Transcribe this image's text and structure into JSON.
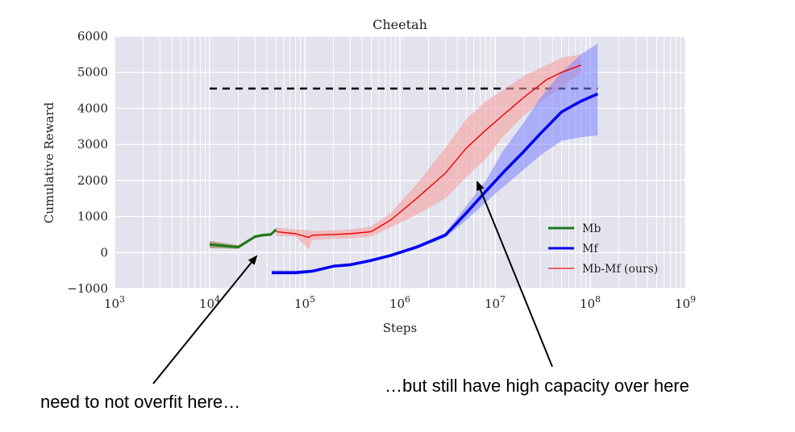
{
  "chart_data": {
    "type": "line",
    "title": "Cheetah",
    "xlabel": "Steps",
    "ylabel": "Cumulative Reward",
    "xscale": "log",
    "xlim": [
      1000,
      1000000000
    ],
    "ylim": [
      -1000,
      6000
    ],
    "x_ticks": [
      {
        "value": 1000,
        "base": "10",
        "exp": "3"
      },
      {
        "value": 10000,
        "base": "10",
        "exp": "4"
      },
      {
        "value": 100000,
        "base": "10",
        "exp": "5"
      },
      {
        "value": 1000000,
        "base": "10",
        "exp": "6"
      },
      {
        "value": 10000000,
        "base": "10",
        "exp": "7"
      },
      {
        "value": 100000000,
        "base": "10",
        "exp": "8"
      },
      {
        "value": 1000000000,
        "base": "10",
        "exp": "9"
      }
    ],
    "y_ticks": [
      {
        "value": -1000,
        "label": "−1000"
      },
      {
        "value": 0,
        "label": "0"
      },
      {
        "value": 1000,
        "label": "1000"
      },
      {
        "value": 2000,
        "label": "2000"
      },
      {
        "value": 3000,
        "label": "3000"
      },
      {
        "value": 4000,
        "label": "4000"
      },
      {
        "value": 5000,
        "label": "5000"
      },
      {
        "value": 6000,
        "label": "6000"
      }
    ],
    "grid": true,
    "legend_position": "lower-right",
    "reference_line": {
      "y": 4550,
      "x_start": 10000,
      "x_end": 120000000,
      "style": "dashed",
      "color": "#000000"
    },
    "series": [
      {
        "name": "Mb",
        "color": "#1a7a1a",
        "x": [
          10000,
          20000,
          30000,
          36000,
          44000,
          50000
        ],
        "y": [
          220,
          150,
          440,
          480,
          500,
          640
        ],
        "lower": [
          120,
          100,
          400,
          440,
          460,
          600
        ],
        "upper": [
          320,
          200,
          480,
          520,
          540,
          680
        ]
      },
      {
        "name": "Mf",
        "color": "#0000ee",
        "x": [
          45000,
          80000,
          120000,
          200000,
          300000,
          500000,
          800000,
          1500000,
          3000000,
          5000000,
          8000000,
          12000000,
          20000000,
          30000000,
          50000000,
          80000000,
          120000000
        ],
        "y": [
          -560,
          -560,
          -520,
          -380,
          -340,
          -220,
          -80,
          150,
          480,
          1100,
          1700,
          2200,
          2800,
          3300,
          3900,
          4200,
          4400
        ],
        "lower": [
          -620,
          -620,
          -560,
          -420,
          -380,
          -260,
          -120,
          100,
          420,
          900,
          1400,
          1800,
          2300,
          2700,
          3100,
          3200,
          3250
        ],
        "upper": [
          -500,
          -500,
          -480,
          -340,
          -300,
          -180,
          -40,
          200,
          540,
          1300,
          2000,
          2800,
          3600,
          4300,
          5000,
          5500,
          5800
        ]
      },
      {
        "name": "Mb-Mf (ours)",
        "color": "#ee0000",
        "fill": "#f5a0a0",
        "x": [
          50000,
          80000,
          110000,
          120000,
          200000,
          300000,
          500000,
          800000,
          1500000,
          3000000,
          5000000,
          8000000,
          12000000,
          20000000,
          35000000,
          50000000,
          80000000
        ],
        "y": [
          580,
          520,
          420,
          480,
          500,
          520,
          580,
          900,
          1500,
          2200,
          2900,
          3400,
          3800,
          4300,
          4800,
          5000,
          5200
        ],
        "lower": [
          460,
          440,
          100,
          350,
          380,
          390,
          440,
          700,
          1050,
          1500,
          2100,
          2600,
          3200,
          3800,
          4300,
          4600,
          5000
        ],
        "upper": [
          700,
          640,
          620,
          600,
          620,
          640,
          720,
          1100,
          1900,
          2900,
          3700,
          4200,
          4500,
          4900,
          5200,
          5400,
          5500
        ]
      }
    ]
  },
  "annotations": {
    "left_note": "need to not overfit here…",
    "right_note": "…but still have high capacity over here"
  }
}
